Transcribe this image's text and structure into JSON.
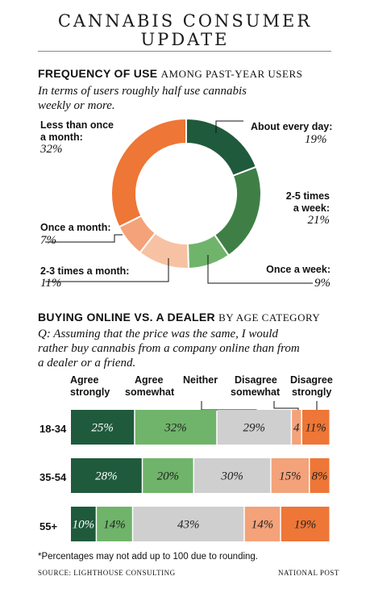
{
  "title_line1": "CANNABIS CONSUMER",
  "title_line2": "UPDATE",
  "colors": {
    "dark_green": "#1f5a3c",
    "mid_green": "#3f7f46",
    "light_green": "#6fb46a",
    "grey": "#cfcfcf",
    "light_orange": "#f7c2a4",
    "mid_orange": "#f4a27a",
    "orange": "#ee7636"
  },
  "frequency": {
    "heading": "FREQUENCY OF USE",
    "heading_sub": "AMONG PAST-YEAR USERS",
    "dek_line1": "In terms of users roughly half use cannabis",
    "dek_line2": "weekly or more.",
    "labels": {
      "daily_l1": "About every day:",
      "daily_pct": "19%",
      "two_five_l1": "2-5 times",
      "two_five_l2": "a week:",
      "two_five_pct": "21%",
      "weekly_l1": "Once a week:",
      "weekly_pct": "9%",
      "two_three_l1": "2-3 times a month:",
      "two_three_pct": "11%",
      "monthly_l1": "Once a month:",
      "monthly_pct": "7%",
      "less_l1": "Less than once",
      "less_l2": "a month:",
      "less_pct": "32%"
    }
  },
  "online": {
    "heading": "BUYING ONLINE VS. A DEALER",
    "heading_sub": "BY AGE CATEGORY",
    "q_line1": "Q: Assuming that the price was the same, I would",
    "q_line2": "rather buy cannabis from a company online than from",
    "q_line3": "a dealer or a friend.",
    "col_labels": {
      "agree_strongly_l1": "Agree",
      "agree_strongly_l2": "strongly",
      "agree_somewhat_l1": "Agree",
      "agree_somewhat_l2": "somewhat",
      "neither": "Neither",
      "disagree_somewhat_l1": "Disagree",
      "disagree_somewhat_l2": "somewhat",
      "disagree_strongly_l1": "Disagree",
      "disagree_strongly_l2": "strongly"
    }
  },
  "footnote": "*Percentages may not add up to 100 due to rounding.",
  "source": "SOURCE: LIGHTHOUSE CONSULTING",
  "credit": "NATIONAL POST",
  "chart_data": [
    {
      "type": "pie",
      "variant": "donut",
      "title": "FREQUENCY OF USE AMONG PAST-YEAR USERS",
      "categories": [
        "About every day",
        "2-5 times a week",
        "Once a week",
        "2-3 times a month",
        "Once a month",
        "Less than once a month"
      ],
      "values": [
        19,
        21,
        9,
        11,
        7,
        32
      ],
      "unit": "%",
      "colors": [
        "#1f5a3c",
        "#3f7f46",
        "#6fb46a",
        "#f7c2a4",
        "#f4a27a",
        "#ee7636"
      ]
    },
    {
      "type": "bar",
      "variant": "stacked-horizontal",
      "title": "BUYING ONLINE VS. A DEALER BY AGE CATEGORY",
      "categories": [
        "18-34",
        "35-54",
        "55+"
      ],
      "series": [
        {
          "name": "Agree strongly",
          "values": [
            25,
            28,
            10
          ],
          "color": "#1f5a3c"
        },
        {
          "name": "Agree somewhat",
          "values": [
            32,
            20,
            14
          ],
          "color": "#6fb46a"
        },
        {
          "name": "Neither",
          "values": [
            29,
            30,
            43
          ],
          "color": "#cfcfcf"
        },
        {
          "name": "Disagree somewhat",
          "values": [
            4,
            15,
            14
          ],
          "color": "#f4a27a"
        },
        {
          "name": "Disagree strongly",
          "values": [
            11,
            8,
            19
          ],
          "color": "#ee7636"
        }
      ],
      "unit": "%"
    }
  ]
}
